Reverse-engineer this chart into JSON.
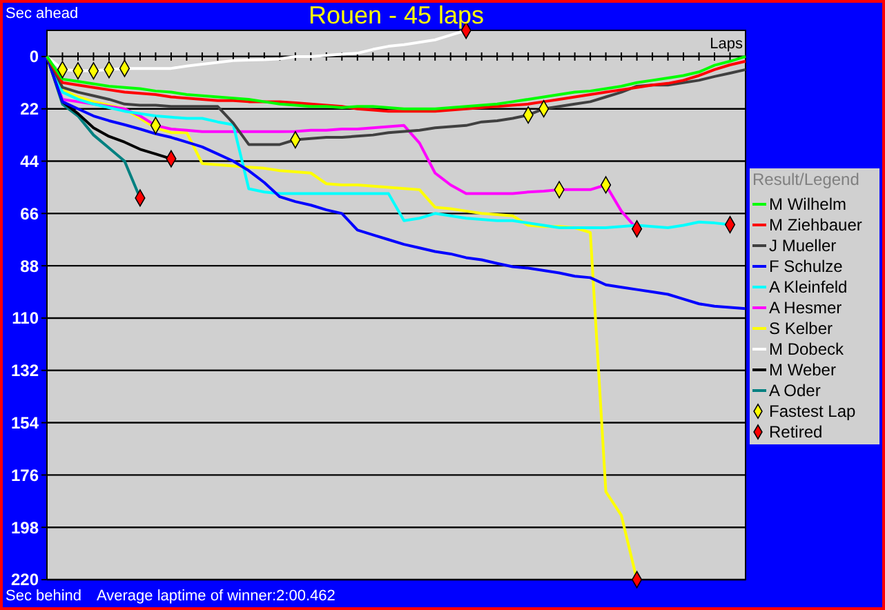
{
  "chart_data": {
    "type": "line",
    "title": "Rouen - 45 laps",
    "ylabel": "Sec ahead",
    "xlabel": "Laps",
    "legend_title": "Result/Legend",
    "annotations": [
      "Sec behind",
      "Average laptime of winner:2:00.462"
    ],
    "categories": [
      null,
      null,
      null,
      null,
      null,
      null,
      null,
      null,
      null,
      null,
      null,
      null,
      null,
      null,
      null,
      null,
      null,
      null,
      null,
      null,
      null,
      null,
      null,
      null,
      null,
      null,
      null,
      null,
      null,
      null,
      null,
      null,
      null,
      null,
      null,
      null,
      null,
      null,
      null,
      null,
      null,
      null,
      null,
      null,
      null,
      null
    ],
    "ylim": [
      220,
      -11
    ],
    "yticks": [
      0,
      22,
      44,
      66,
      88,
      110,
      132,
      154,
      176,
      198,
      220
    ],
    "grid": "y",
    "legend": "right",
    "series": [
      {
        "name": "M Wilhelm",
        "color": "#00ff00",
        "values": [
          0,
          9.5,
          10.5,
          11.5,
          12.5,
          13,
          13.5,
          14.5,
          15,
          16,
          16.5,
          17,
          17.5,
          18,
          19,
          20,
          20.5,
          21,
          21,
          21.5,
          21,
          21,
          21.5,
          22,
          22,
          22,
          21.5,
          21,
          20.5,
          20,
          19,
          18,
          17,
          16,
          15,
          14.5,
          13.5,
          12.5,
          11,
          10,
          9,
          8,
          6.5,
          3.7,
          2,
          0
        ]
      },
      {
        "name": "M Ziehbauer",
        "color": "#ff0000",
        "values": [
          0,
          11,
          12,
          13,
          14,
          15,
          15.5,
          16,
          17,
          17.5,
          18,
          18.5,
          18.5,
          19,
          19,
          19,
          19.5,
          20,
          20.5,
          21,
          22,
          22.5,
          23,
          23,
          23,
          23,
          22.5,
          22,
          21.5,
          21,
          20.5,
          20,
          19,
          18,
          17,
          16,
          15,
          14,
          13,
          12,
          11.3,
          10,
          8,
          5.5,
          3.5,
          2
        ]
      },
      {
        "name": "J Mueller",
        "color": "#404040",
        "values": [
          0,
          13,
          15,
          16.5,
          18,
          20,
          20.5,
          20.5,
          21,
          21,
          21,
          21,
          28,
          37,
          37,
          37,
          35,
          34.5,
          34,
          34,
          33.5,
          33,
          32,
          31.5,
          31,
          30,
          29.5,
          29,
          27.5,
          27,
          26,
          24.6,
          22,
          21,
          20,
          19,
          17,
          15,
          12.5,
          12,
          12,
          11,
          10,
          8.4,
          7,
          5.5
        ]
      },
      {
        "name": "F Schulze",
        "color": "#0000ff",
        "values": [
          0,
          19,
          22,
          25,
          27,
          28.7,
          30.5,
          32.5,
          34,
          36,
          38,
          41,
          44,
          48,
          53,
          59,
          61,
          62.5,
          64.5,
          66,
          73,
          75,
          77,
          79,
          80.5,
          82,
          83,
          84.6,
          85.5,
          87,
          88.4,
          89,
          90,
          91,
          92.4,
          93,
          96,
          97,
          98,
          99,
          100,
          102,
          104,
          105,
          105.5,
          106
        ]
      },
      {
        "name": "A Kleinfeld",
        "color": "#00ffff",
        "values": [
          0,
          15,
          18,
          20,
          21.5,
          23,
          24,
          25,
          25.5,
          26,
          26,
          27.5,
          28.7,
          55.6,
          57,
          57.6,
          57.6,
          57.6,
          57.6,
          57.6,
          57.6,
          57.6,
          57.6,
          69,
          68,
          66,
          67,
          68,
          68.5,
          69,
          69,
          70,
          71,
          72,
          72,
          72,
          72,
          71.5,
          71,
          71.5,
          72,
          71,
          69.6,
          70,
          70.7,
          null
        ]
      },
      {
        "name": "A Hesmer",
        "color": "#ff00ff",
        "values": [
          0,
          18,
          19,
          20,
          21,
          22,
          25,
          29,
          30.5,
          31,
          31.6,
          31.6,
          31.6,
          31.6,
          31.6,
          31.6,
          31.5,
          31,
          31,
          30.5,
          30.5,
          30,
          29.5,
          29,
          36.4,
          49,
          54,
          57.6,
          57.6,
          57.6,
          57.6,
          57,
          56.6,
          56,
          56,
          56,
          54,
          65,
          72.5,
          null,
          null,
          null,
          null,
          null,
          null,
          null
        ]
      },
      {
        "name": "S Kelber",
        "color": "#ffff00",
        "values": [
          0,
          14,
          17,
          19,
          20.5,
          22,
          26,
          30,
          32,
          32,
          45,
          45.5,
          46,
          46.5,
          47,
          48,
          48.5,
          49,
          53.5,
          54,
          54,
          54.5,
          55,
          55.5,
          56,
          63.4,
          64,
          65,
          66,
          66.5,
          67,
          71,
          71.5,
          71.5,
          72,
          74,
          183,
          193,
          220,
          null,
          null,
          null,
          null,
          null,
          null,
          null
        ]
      },
      {
        "name": "M Dobeck",
        "color": "#ffffff",
        "values": [
          0,
          5.5,
          6,
          6,
          5.5,
          5,
          5,
          5,
          5,
          4,
          3.2,
          2.5,
          1.7,
          1.5,
          1.3,
          1,
          0,
          0,
          -0.5,
          -1,
          -1.4,
          -3,
          -4.3,
          -5,
          -6,
          -7,
          -9,
          -11,
          null,
          null,
          null,
          null,
          null,
          null,
          null,
          null,
          null,
          null,
          null,
          null,
          null,
          null,
          null,
          null,
          null,
          null
        ]
      },
      {
        "name": "M Weber",
        "color": "#000000",
        "values": [
          0,
          19,
          24,
          30,
          33.6,
          36,
          39,
          41,
          43,
          null,
          null,
          null,
          null,
          null,
          null,
          null,
          null,
          null,
          null,
          null,
          null,
          null,
          null,
          null,
          null,
          null,
          null,
          null,
          null,
          null,
          null,
          null,
          null,
          null,
          null,
          null,
          null,
          null,
          null,
          null,
          null,
          null,
          null,
          null,
          null,
          null
        ]
      },
      {
        "name": "A Oder",
        "color": "#008080",
        "values": [
          0,
          20,
          25,
          33,
          38.5,
          44,
          59.5,
          null,
          null,
          null,
          null,
          null,
          null,
          null,
          null,
          null,
          null,
          null,
          null,
          null,
          null,
          null,
          null,
          null,
          null,
          null,
          null,
          null,
          null,
          null,
          null,
          null,
          null,
          null,
          null,
          null,
          null,
          null,
          null,
          null,
          null,
          null,
          null,
          null,
          null,
          null
        ]
      },
      {
        "name": "Fastest Lap",
        "type": "scatter",
        "marker": "diamond",
        "color": "#ffff00",
        "values": [
          null,
          5.5,
          6,
          6,
          5.5,
          5,
          null,
          29,
          null,
          null,
          null,
          null,
          null,
          null,
          null,
          null,
          35,
          null,
          null,
          null,
          null,
          null,
          null,
          null,
          null,
          null,
          null,
          null,
          null,
          null,
          null,
          24.6,
          22,
          56,
          null,
          null,
          54,
          null,
          null,
          null,
          null,
          null,
          null,
          null,
          null,
          null
        ]
      },
      {
        "name": "Retired",
        "type": "scatter",
        "marker": "diamond",
        "color": "#ff0000",
        "values": [
          null,
          null,
          null,
          null,
          null,
          null,
          59.5,
          null,
          43,
          null,
          null,
          null,
          null,
          null,
          null,
          null,
          null,
          null,
          null,
          null,
          null,
          null,
          null,
          null,
          null,
          null,
          null,
          -11,
          null,
          null,
          null,
          null,
          null,
          null,
          null,
          null,
          null,
          null,
          72.5,
          null,
          null,
          null,
          null,
          null,
          70.7,
          null
        ]
      },
      {
        "type": "scatter",
        "marker": "diamond",
        "color": "#ff0000",
        "values": [
          null,
          null,
          null,
          null,
          null,
          null,
          null,
          null,
          null,
          null,
          null,
          null,
          null,
          null,
          null,
          null,
          null,
          null,
          null,
          null,
          null,
          null,
          null,
          null,
          null,
          null,
          null,
          null,
          null,
          null,
          null,
          null,
          null,
          null,
          null,
          null,
          null,
          null,
          220,
          null,
          null,
          null,
          null,
          null,
          null,
          null
        ]
      }
    ]
  }
}
